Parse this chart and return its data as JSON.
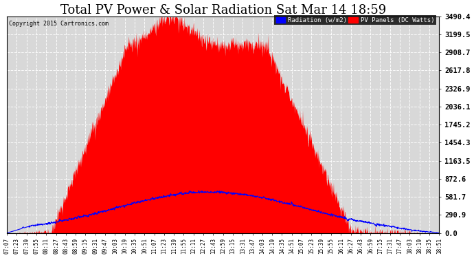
{
  "title": "Total PV Power & Solar Radiation Sat Mar 14 18:59",
  "copyright": "Copyright 2015 Cartronics.com",
  "legend_labels": [
    "Radiation (w/m2)",
    "PV Panels (DC Watts)"
  ],
  "legend_colors": [
    "blue",
    "red"
  ],
  "yticks": [
    0.0,
    290.9,
    581.7,
    872.6,
    1163.5,
    1454.3,
    1745.2,
    2036.1,
    2326.9,
    2617.8,
    2908.7,
    3199.5,
    3490.4
  ],
  "ymax": 3490.4,
  "ymin": 0.0,
  "background_color": "#ffffff",
  "plot_bg_color": "#d8d8d8",
  "grid_color": "#ffffff",
  "title_fontsize": 13,
  "pv_peak": 3490.4,
  "rad_peak": 660.0
}
